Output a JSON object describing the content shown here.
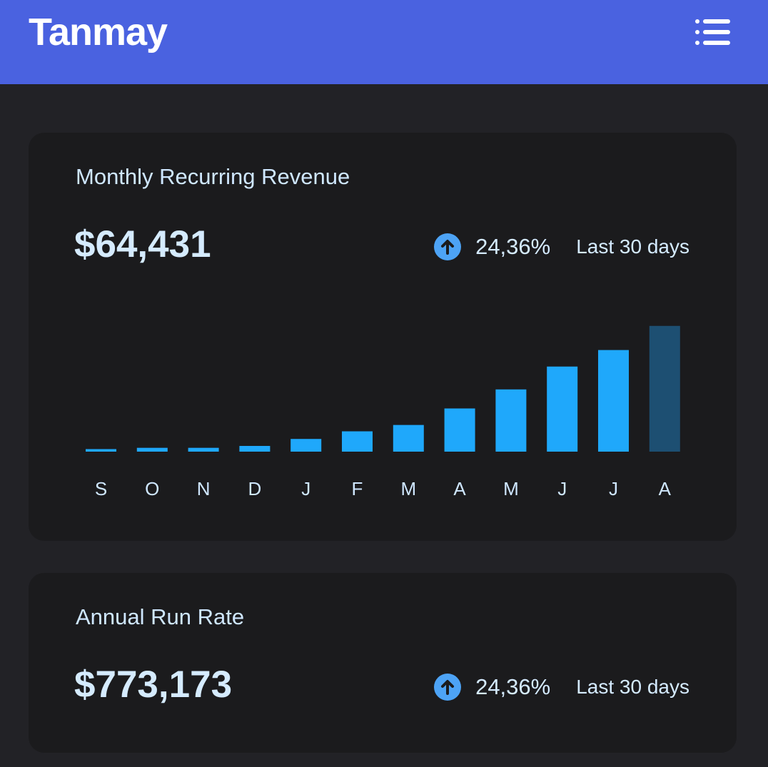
{
  "header": {
    "brand": "Tanmay",
    "menu_icon": "list-menu-icon"
  },
  "colors": {
    "header_bg": "#4a62e0",
    "card_bg": "#1b1b1d",
    "page_bg": "#222226",
    "bar": "#1fa8fb",
    "bar_current": "#1d4f72",
    "trend_icon": "#4da3f5"
  },
  "mrr": {
    "title": "Monthly Recurring Revenue",
    "value": "$64,431",
    "trend_icon": "arrow-up-circle-icon",
    "change": "24,36%",
    "period": "Last 30 days"
  },
  "arr": {
    "title": "Annual Run Rate",
    "value": "$773,173",
    "trend_icon": "arrow-up-circle-icon",
    "change": "24,36%",
    "period": "Last 30 days"
  },
  "chart_data": {
    "type": "bar",
    "categories": [
      "S",
      "O",
      "N",
      "D",
      "J",
      "F",
      "M",
      "A",
      "M",
      "J",
      "J",
      "A"
    ],
    "values": [
      2,
      3,
      3,
      4.5,
      10,
      16,
      21,
      34,
      49,
      67,
      80,
      99
    ],
    "highlight_index": 11,
    "ylim": [
      0,
      100
    ],
    "grid": false,
    "legend": "none"
  }
}
